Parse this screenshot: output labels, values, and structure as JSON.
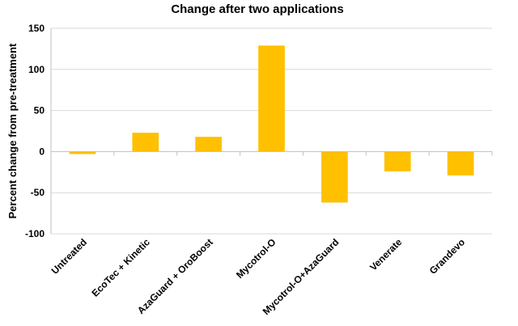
{
  "chart_data": {
    "type": "bar",
    "title": "Change after two applications",
    "ylabel": "Percent change from pre-treatment",
    "xlabel": "",
    "categories": [
      "Untreated",
      "EcoTec + Kinetic",
      "AzaGuard + OroBoost",
      "Mycotrol-O",
      "Mycotrol-O+AzaGuard",
      "Venerate",
      "Grandevo"
    ],
    "values": [
      -3,
      23,
      18,
      129,
      -62,
      -24,
      -29
    ],
    "ylim": [
      -100,
      150
    ],
    "yticks": [
      "-100",
      "-50",
      "0",
      "50",
      "100",
      "150"
    ],
    "grid": true,
    "legend": "none",
    "bar_color": "#FFC000"
  }
}
